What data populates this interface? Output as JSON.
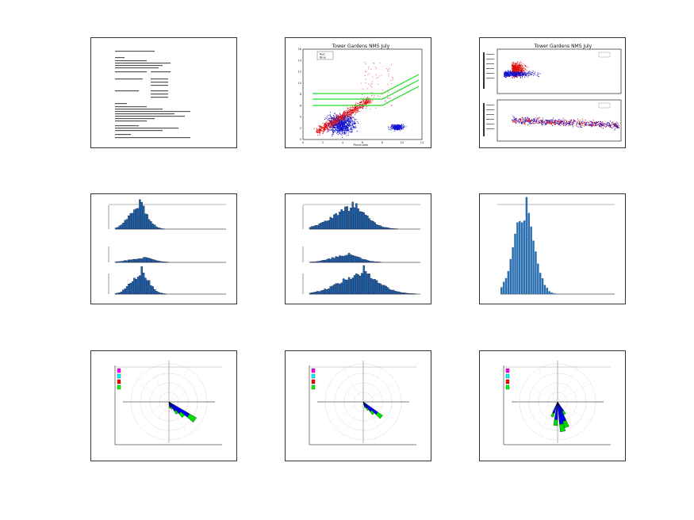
{
  "sheet": {
    "title": "",
    "thumbnails": [
      {
        "id": "text-page"
      },
      {
        "id": "scatter-thresholds"
      },
      {
        "id": "dual-scatter"
      },
      {
        "id": "histogram-stack-a"
      },
      {
        "id": "histogram-stack-b"
      },
      {
        "id": "histogram-single"
      },
      {
        "id": "windrose-1"
      },
      {
        "id": "windrose-2"
      },
      {
        "id": "windrose-3"
      }
    ]
  },
  "chart_data": [
    {
      "type": "scatter",
      "title": "Tower Gardens NMS July",
      "xlabel": "Particulate",
      "ylabel": "",
      "x_ticks": [
        "0",
        "2",
        "4",
        "6",
        "8",
        "10",
        "12"
      ],
      "y_ticks": [
        "0",
        "2",
        "4",
        "6",
        "8",
        "10",
        "12",
        "14",
        "16"
      ],
      "legend": [
        "Red",
        "Blue"
      ],
      "colors": {
        "series_a": "#e01010",
        "series_b": "#1010d0",
        "threshold": "#22dd22"
      }
    },
    {
      "type": "scatter",
      "title": "Tower Gardens NMS July",
      "xlabel": "",
      "ylabel": "",
      "colors": {
        "series_a": "#e01010",
        "series_b": "#1010d0"
      }
    },
    {
      "type": "bar",
      "title": "",
      "colors": {
        "bars": "#2266aa",
        "edge": "#0a0a30"
      }
    },
    {
      "type": "bar",
      "title": "",
      "colors": {
        "bars": "#2266aa",
        "edge": "#0a0a30"
      }
    },
    {
      "type": "bar",
      "title": "",
      "colors": {
        "bars": "#2a6fb0"
      }
    },
    {
      "type": "windrose",
      "title": "",
      "legend_colors": [
        "#ff00ff",
        "#00ffff",
        "#ff0000",
        "#00ff00"
      ],
      "colors": {
        "petal_inner": "#0000ff",
        "petal_outer": "#00dd00"
      }
    },
    {
      "type": "windrose",
      "title": "",
      "legend_colors": [
        "#ff00ff",
        "#00ffff",
        "#ff0000",
        "#00ff00"
      ],
      "colors": {
        "petal_inner": "#0000ff",
        "petal_outer": "#00dd00"
      }
    },
    {
      "type": "windrose",
      "title": "",
      "legend_colors": [
        "#ff00ff",
        "#00ffff",
        "#ff0000",
        "#00ff00"
      ],
      "colors": {
        "petal_inner": "#0000ff",
        "petal_outer": "#00dd00"
      }
    }
  ]
}
